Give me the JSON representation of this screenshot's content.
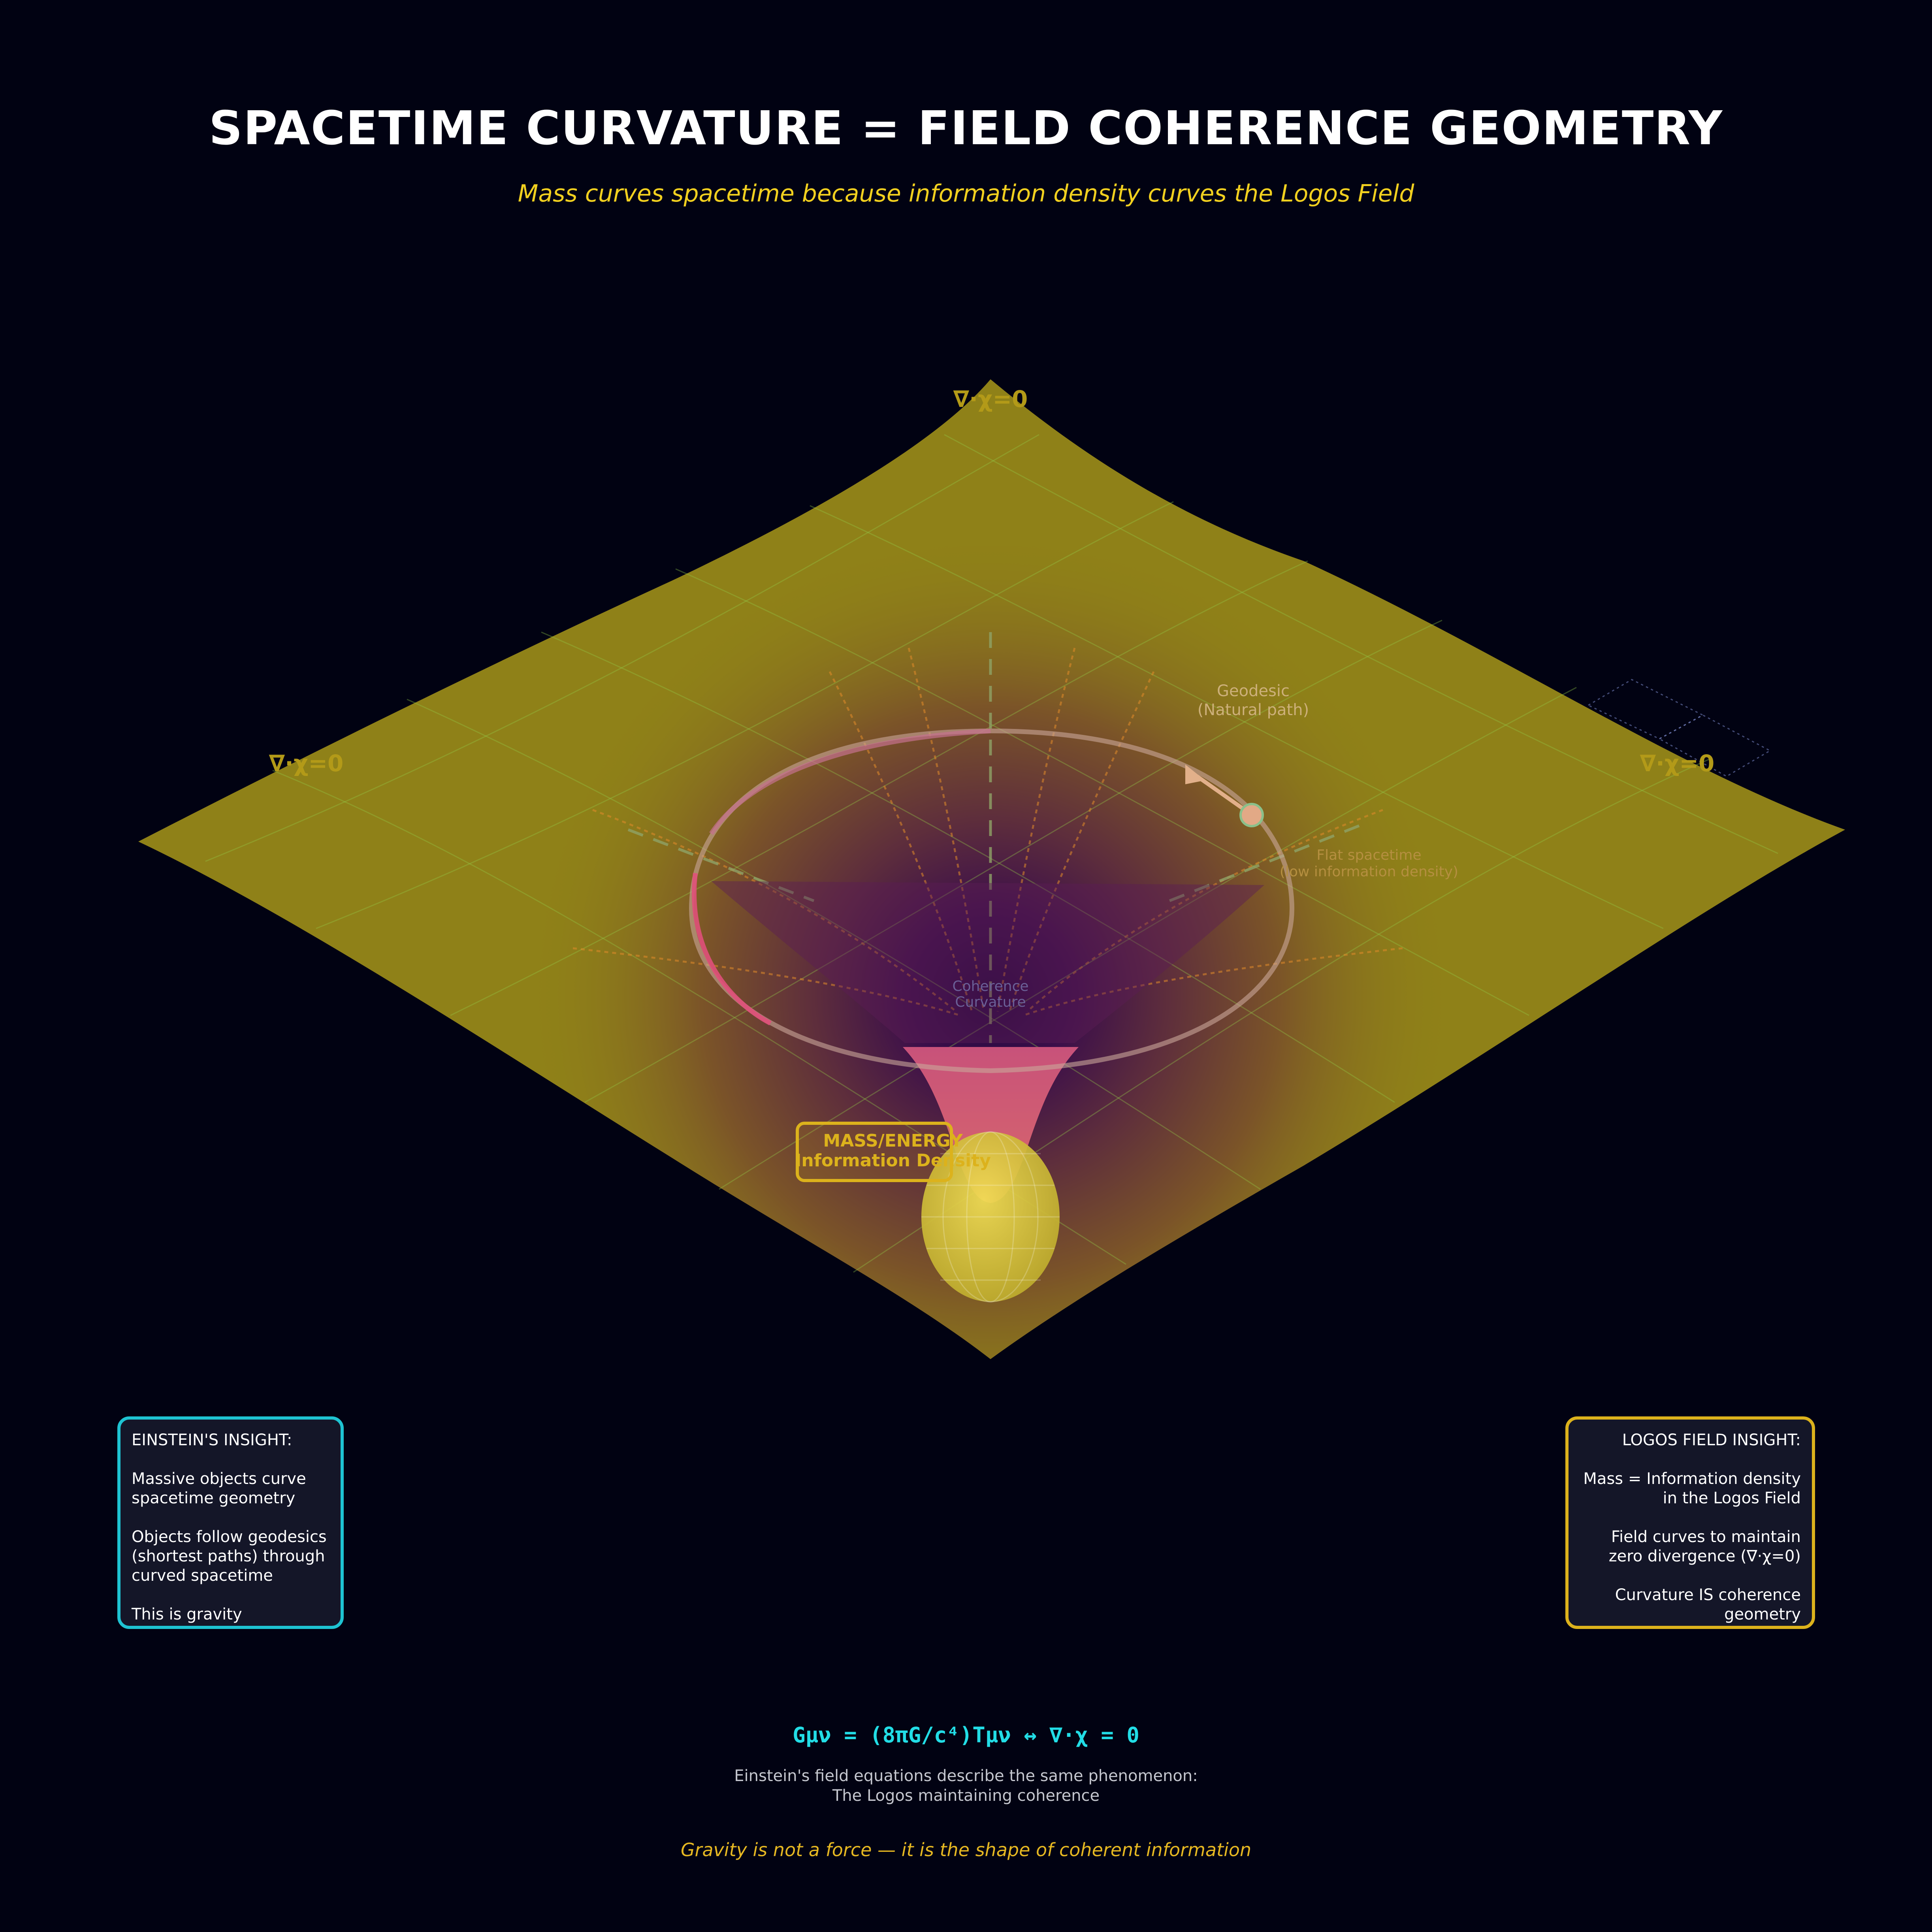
{
  "header": {
    "title": "SPACETIME CURVATURE = FIELD COHERENCE GEOMETRY",
    "subtitle": "Mass curves spacetime because information density curves the Logos Field"
  },
  "surface_labels": {
    "top": "∇·χ=0",
    "left": "∇·χ=0",
    "right": "∇·χ=0",
    "geodesic_line1": "Geodesic",
    "geodesic_line2": "(Natural path)",
    "flat_line1": "Flat spacetime",
    "flat_line2": "(low information density)",
    "curvature_line1": "Coherence",
    "curvature_line2": "Curvature",
    "mass_line1": "MASS/ENERGY",
    "mass_line2": "Information Density"
  },
  "einstein_panel": {
    "lines": [
      "EINSTEIN'S INSIGHT:",
      "",
      "Massive objects curve",
      "spacetime geometry",
      "",
      "Objects follow geodesics",
      "(shortest paths) through",
      "curved spacetime",
      "",
      "This is gravity"
    ]
  },
  "logos_panel": {
    "lines": [
      "LOGOS FIELD INSIGHT:",
      "",
      "Mass = Information density",
      "in the Logos Field",
      "",
      "Field curves to maintain",
      "zero divergence (∇·χ=0)",
      "",
      "Curvature IS coherence",
      "geometry"
    ]
  },
  "footer": {
    "equation": "Gμν = (8πG/c⁴)Tμν  ↔  ∇·χ = 0",
    "explain_line1": "Einstein's field equations describe the same phenomenon:",
    "explain_line2": "The Logos maintaining coherence",
    "closing": "Gravity is not a force — it is the shape of coherent information"
  },
  "colors": {
    "background": "#010212",
    "title": "#ffffff",
    "subtitle": "#f2d01f",
    "surface_flat": "#8f8118",
    "surface_deep": "#2a0845",
    "grid": "#93c949",
    "geodesic": "#d0506e",
    "einstein_border": "#1ec3d2",
    "logos_border": "#dcb21c",
    "equation": "#22dde6",
    "closing": "#e6b822"
  }
}
